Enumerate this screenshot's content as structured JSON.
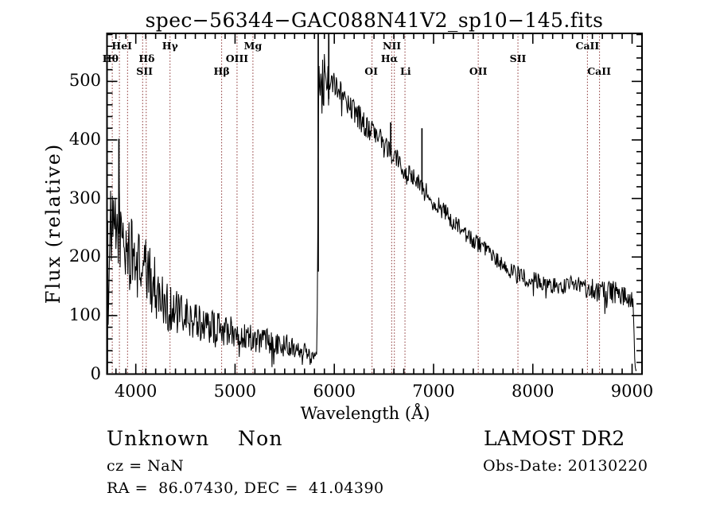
{
  "chart_data": {
    "type": "line",
    "title": "spec−56344−GAC088N41V2_sp10−145.fits",
    "xlabel": "Wavelength (Å)",
    "ylabel": "Flux (relative)",
    "xlim": [
      3710,
      9100
    ],
    "ylim": [
      0,
      582
    ],
    "xticks": [
      4000,
      5000,
      6000,
      7000,
      8000,
      9000
    ],
    "yticks": [
      0,
      100,
      200,
      300,
      400,
      500
    ],
    "x_minor_step": 100,
    "y_minor_step": 20,
    "grid": false,
    "spectrum_color": "#000000",
    "line_marker_color": "#8a3232",
    "series": [
      {
        "name": "spectrum",
        "envelope": [
          [
            3710,
            140,
            140
          ],
          [
            3722,
            185,
            110
          ],
          [
            3740,
            230,
            85
          ],
          [
            3775,
            235,
            75
          ],
          [
            3815,
            245,
            80
          ],
          [
            3830,
            285,
            85
          ],
          [
            3845,
            235,
            75
          ],
          [
            3880,
            222,
            70
          ],
          [
            3940,
            205,
            65
          ],
          [
            4000,
            192,
            62
          ],
          [
            4080,
            180,
            58
          ],
          [
            4150,
            162,
            55
          ],
          [
            4250,
            132,
            48
          ],
          [
            4340,
            114,
            42
          ],
          [
            4430,
            102,
            38
          ],
          [
            4550,
            93,
            34
          ],
          [
            4700,
            84,
            30
          ],
          [
            4861,
            77,
            28
          ],
          [
            4990,
            71,
            26
          ],
          [
            5120,
            64,
            24
          ],
          [
            5250,
            59,
            23
          ],
          [
            5400,
            55,
            21
          ],
          [
            5560,
            49,
            19
          ],
          [
            5680,
            43,
            17
          ],
          [
            5755,
            31,
            12
          ],
          [
            5790,
            29,
            11
          ],
          [
            5812,
            42,
            15
          ],
          [
            5824,
            80,
            22
          ],
          [
            5829,
            140,
            40
          ],
          [
            5833,
            260,
            60
          ],
          [
            5836,
            430,
            60
          ],
          [
            5845,
            520,
            42
          ],
          [
            5860,
            500,
            40
          ],
          [
            5880,
            510,
            40
          ],
          [
            5900,
            522,
            32
          ],
          [
            5915,
            515,
            26
          ],
          [
            5940,
            510,
            30
          ],
          [
            5960,
            506,
            22
          ],
          [
            6020,
            494,
            20
          ],
          [
            6100,
            472,
            20
          ],
          [
            6200,
            450,
            20
          ],
          [
            6300,
            428,
            22
          ],
          [
            6420,
            407,
            20
          ],
          [
            6520,
            391,
            19
          ],
          [
            6563,
            380,
            18
          ],
          [
            6650,
            362,
            17
          ],
          [
            6750,
            342,
            17
          ],
          [
            6850,
            326,
            16
          ],
          [
            6950,
            309,
            16
          ],
          [
            7050,
            289,
            16
          ],
          [
            7150,
            269,
            16
          ],
          [
            7250,
            249,
            16
          ],
          [
            7350,
            233,
            15
          ],
          [
            7450,
            223,
            15
          ],
          [
            7550,
            206,
            14
          ],
          [
            7650,
            193,
            14
          ],
          [
            7750,
            179,
            15
          ],
          [
            7850,
            169,
            16
          ],
          [
            7950,
            163,
            15
          ],
          [
            8050,
            159,
            14
          ],
          [
            8150,
            153,
            14
          ],
          [
            8280,
            148,
            15
          ],
          [
            8380,
            153,
            15
          ],
          [
            8440,
            157,
            15
          ],
          [
            8520,
            147,
            16
          ],
          [
            8620,
            144,
            19
          ],
          [
            8720,
            141,
            21
          ],
          [
            8820,
            139,
            20
          ],
          [
            8930,
            132,
            17
          ],
          [
            9000,
            126,
            14
          ],
          [
            9012,
            119,
            9
          ],
          [
            9020,
            65,
            6
          ],
          [
            9028,
            14,
            4
          ],
          [
            9045,
            9,
            3
          ]
        ],
        "spikes": [
          [
            3714,
            2,
            260
          ],
          [
            3830,
            240,
            402
          ],
          [
            5838,
            175,
            650
          ],
          [
            5944,
            470,
            615
          ],
          [
            6568,
            375,
            430
          ],
          [
            6883,
            320,
            420
          ]
        ]
      }
    ],
    "spectral_lines": [
      3763,
      3835,
      3917,
      4069,
      4105,
      4345,
      4865,
      5020,
      5180,
      6380,
      6578,
      6605,
      6712,
      7450,
      7850,
      8550,
      8672
    ],
    "line_labels": [
      {
        "text": "HeI",
        "row": 0,
        "wavelength": 3860
      },
      {
        "text": "Hγ",
        "row": 0,
        "wavelength": 4345
      },
      {
        "text": "Mg",
        "row": 0,
        "wavelength": 5180
      },
      {
        "text": "NII",
        "row": 0,
        "wavelength": 6580
      },
      {
        "text": "CaII",
        "row": 0,
        "wavelength": 8550
      },
      {
        "text": "Hθ",
        "row": 1,
        "wavelength": 3745
      },
      {
        "text": "Hδ",
        "row": 1,
        "wavelength": 4110
      },
      {
        "text": "OIII",
        "row": 1,
        "wavelength": 5020
      },
      {
        "text": "Hα",
        "row": 1,
        "wavelength": 6555
      },
      {
        "text": "SII",
        "row": 1,
        "wavelength": 7850
      },
      {
        "text": "SII",
        "row": 2,
        "wavelength": 4088
      },
      {
        "text": "Hβ",
        "row": 2,
        "wavelength": 4865
      },
      {
        "text": "OI",
        "row": 2,
        "wavelength": 6372
      },
      {
        "text": "Li",
        "row": 2,
        "wavelength": 6718
      },
      {
        "text": "OII",
        "row": 2,
        "wavelength": 7450
      },
      {
        "text": "CaII",
        "row": 2,
        "wavelength": 8668
      }
    ]
  },
  "annotations": {
    "class_label": "Unknown",
    "subclass_label": "Non",
    "survey_label": "LAMOST DR2",
    "cz_label": "cz = NaN",
    "obs_date_label": "Obs-Date: 20130220",
    "coords_label": "RA =  86.07430, DEC =  41.04390"
  }
}
